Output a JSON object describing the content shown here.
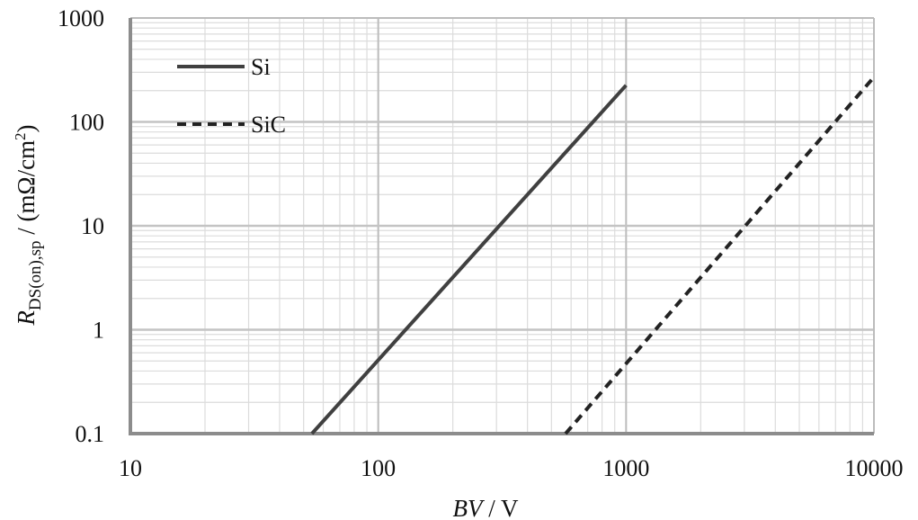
{
  "chart_data": {
    "type": "line",
    "xscale": "log",
    "yscale": "log",
    "xlim": [
      10,
      10000
    ],
    "ylim": [
      0.1,
      1000
    ],
    "x_ticks": [
      "10",
      "100",
      "1000",
      "10000"
    ],
    "y_ticks": [
      "0.1",
      "1",
      "10",
      "100",
      "1000"
    ],
    "xlabel": {
      "italic": "BV",
      "rest": " / V"
    },
    "ylabel": {
      "R": "R",
      "sub": "DS(on),sp",
      "mid": " / (mΩ/cm",
      "sup": "2",
      "end": ")"
    },
    "grid": {
      "major": true,
      "minor": true
    },
    "legend": {
      "position": "top-left"
    },
    "series": [
      {
        "name": "Si",
        "style": "solid",
        "color": "#404040",
        "x": [
          54,
          1000
        ],
        "y": [
          0.1,
          225
        ]
      },
      {
        "name": "SiC",
        "style": "dashed",
        "color": "#222222",
        "x": [
          570,
          10000
        ],
        "y": [
          0.1,
          270
        ]
      }
    ]
  }
}
